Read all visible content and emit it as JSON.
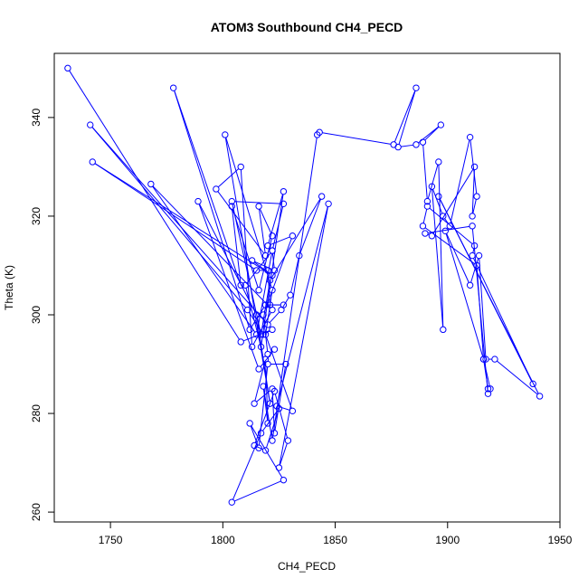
{
  "chart_data": {
    "type": "line",
    "title": "ATOM3 Southbound CH4_PECD",
    "xlabel": "CH4_PECD",
    "ylabel": "Theta (K)",
    "xlim": [
      1725,
      1950
    ],
    "ylim": [
      258,
      353
    ],
    "xticks": [
      1750,
      1800,
      1850,
      1900,
      1950
    ],
    "yticks": [
      260,
      280,
      300,
      320,
      340
    ],
    "series_color": "#0000ff",
    "marker": "open-circle",
    "series": [
      {
        "x": [
          1731,
          1808,
          1822,
          1818,
          1811,
          1741,
          1820,
          1826,
          1830,
          1834,
          1844,
          1821,
          1817,
          1804,
          1827,
          1822,
          1815,
          1768,
          1822,
          1813,
          1808,
          1797,
          1819,
          1816,
          1822,
          1816,
          1804,
          1808,
          1778,
          1812,
          1819,
          1827,
          1821,
          1820,
          1815,
          1742,
          1822,
          1813,
          1823,
          1822,
          1810,
          1817,
          1827,
          1820,
          1831,
          1818,
          1820,
          1823,
          1816,
          1789,
          1815,
          1821,
          1801,
          1822,
          1819,
          1831,
          1824,
          1847,
          1825,
          1829,
          1823,
          1814,
          1819,
          1825,
          1817,
          1804,
          1827,
          1812,
          1816,
          1820,
          1828,
          1823,
          1822,
          1814,
          1819,
          1820,
          1818,
          1822,
          1842,
          1843,
          1876,
          1886,
          1878,
          1886,
          1897,
          1889,
          1891,
          1896,
          1898,
          1893,
          1898,
          1901,
          1910,
          1913,
          1911,
          1912,
          1893,
          1890,
          1911,
          1918,
          1919,
          1916,
          1913,
          1889,
          1891,
          1912,
          1911,
          1938,
          1896,
          1941,
          1921,
          1917,
          1914,
          1910,
          1899,
          1916,
          1918
        ],
        "y": [
          350,
          294.5,
          297,
          296,
          301,
          338.5,
          298,
          301,
          304,
          312,
          324,
          307,
          296,
          323,
          322.5,
          313,
          296,
          326.5,
          301,
          293.5,
          330,
          325.5,
          312,
          322,
          316,
          305,
          322,
          306,
          346,
          297,
          302,
          302,
          302,
          309,
          309,
          331,
          308,
          311,
          309,
          313,
          306,
          293.5,
          325,
          314,
          316,
          300,
          292,
          293,
          289,
          323,
          300,
          282,
          336.5,
          305,
          296,
          280.5,
          281.5,
          322.5,
          269,
          274.5,
          284.5,
          273.5,
          272.5,
          281,
          276,
          262,
          266.5,
          278,
          273,
          290,
          290,
          276,
          285,
          282,
          291,
          278,
          285.5,
          274.5,
          336.5,
          337,
          334.5,
          346,
          334,
          334.5,
          338.5,
          335,
          323,
          331,
          297,
          326,
          320,
          318,
          336,
          324,
          320,
          330,
          316,
          316.5,
          318,
          284,
          285,
          291,
          310,
          318,
          322,
          314,
          312,
          286,
          324,
          283.5,
          291,
          291,
          312,
          306,
          317,
          291,
          285
        ]
      }
    ]
  }
}
